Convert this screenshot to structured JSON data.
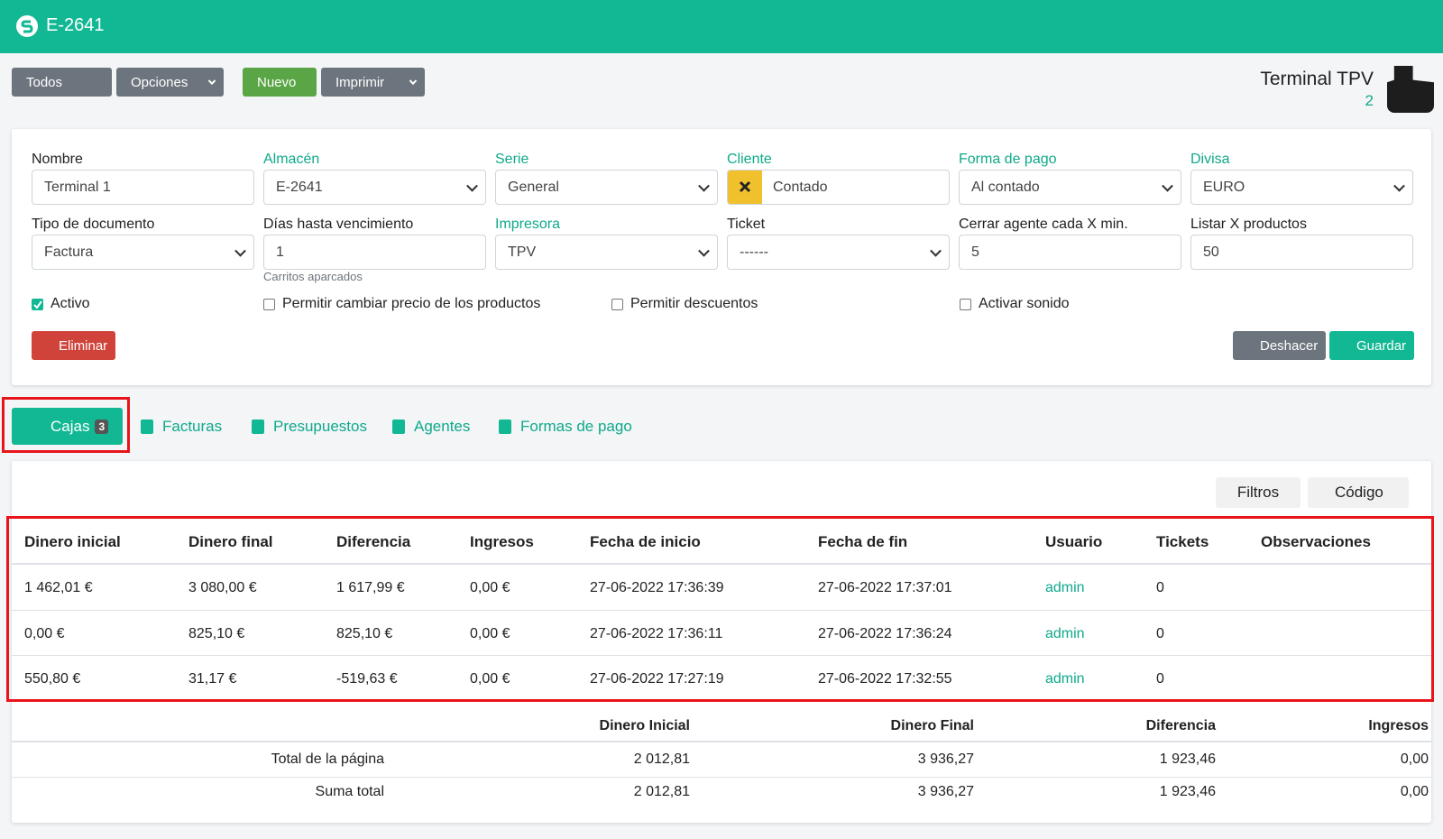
{
  "header": {
    "title": "E-2641"
  },
  "toolbar": {
    "buttons": [
      "Todos",
      "Opciones",
      "Nuevo",
      "Imprimir"
    ]
  },
  "terminal": {
    "label": "Terminal TPV",
    "value": 2
  },
  "form": {
    "fields": [
      {
        "label": "Nombre",
        "value": "Terminal 1"
      },
      {
        "label": "Almacén",
        "value": "E-2641"
      },
      {
        "label": "Serie",
        "value": "General"
      },
      {
        "label": "Cliente",
        "value": "Contado"
      },
      {
        "label": "Forma de pago",
        "value": "Al contado"
      },
      {
        "label": "Divisa",
        "value": "EURO"
      },
      {
        "label": "Tipo de documento",
        "value": "Factura"
      },
      {
        "label": "Días hasta vencimiento",
        "value": 1
      },
      {
        "label": "Impresora",
        "value": "TPV"
      },
      {
        "label": "Ticket",
        "value": "------"
      },
      {
        "label": "Cerrar agente cada X min.",
        "value": 5
      },
      {
        "label": "Listar X productos",
        "value": 50
      }
    ],
    "help": "Carritos aparcados",
    "checkboxes": [
      {
        "label": "Activo",
        "checked": true
      },
      {
        "label": "Permitir cambiar precio de los productos",
        "checked": false
      },
      {
        "label": "Permitir descuentos",
        "checked": false
      },
      {
        "label": "Activar sonido",
        "checked": false
      }
    ],
    "delete": "Eliminar",
    "undo": "Deshacer",
    "save": "Guardar"
  },
  "tabs": [
    {
      "label": "Cajas",
      "count": 3
    },
    {
      "label": "Facturas"
    },
    {
      "label": "Presupuestos"
    },
    {
      "label": "Agentes"
    },
    {
      "label": "Formas de pago"
    }
  ],
  "list": {
    "filters": "Filtros",
    "sort": "Código",
    "columns": [
      "Dinero inicial",
      "Dinero final",
      "Diferencia",
      "Ingresos",
      "Fecha de inicio",
      "Fecha de fin",
      "Usuario",
      "Tickets",
      "Observaciones"
    ],
    "rows": [
      [
        "1 462,01 €",
        "3 080,00 €",
        "1 617,99 €",
        "0,00 €",
        "27-06-2022 17:36:39",
        "27-06-2022 17:37:01",
        "admin",
        0
      ],
      [
        "0,00 €",
        "825,10 €",
        "825,10 €",
        "0,00 €",
        "27-06-2022 17:36:11",
        "27-06-2022 17:36:24",
        "admin",
        0
      ],
      [
        "550,80 €",
        "31,17 €",
        "-519,63 €",
        "0,00 €",
        "27-06-2022 17:27:19",
        "27-06-2022 17:32:55",
        "admin",
        0
      ]
    ]
  },
  "totals": {
    "columns": [
      "Dinero Inicial",
      "Dinero Final",
      "Diferencia",
      "Ingresos"
    ],
    "rows": [
      {
        "label": "Total de la página",
        "values": [
          "2 012,81",
          "3 936,27",
          "1 923,46",
          "0,00"
        ]
      },
      {
        "label": "Suma total",
        "values": [
          "2 012,81",
          "3 936,27",
          "1 923,46",
          "0,00"
        ]
      }
    ]
  }
}
